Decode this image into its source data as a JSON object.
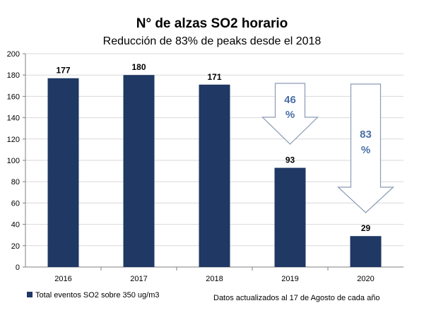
{
  "chart_data": {
    "type": "bar",
    "title": "N° de alzas SO2 horario",
    "subtitle": "Reducción de 83% de peaks desde el 2018",
    "categories": [
      "2016",
      "2017",
      "2018",
      "2019",
      "2020"
    ],
    "series": [
      {
        "name": "Total eventos SO2 sobre 350 ug/m3",
        "values": [
          177,
          180,
          171,
          93,
          29
        ]
      }
    ],
    "ylim": [
      0,
      200
    ],
    "yticks": [
      "0",
      "20",
      "40",
      "60",
      "80",
      "100",
      "120",
      "140",
      "160",
      "180",
      "200"
    ],
    "grid": true,
    "legend_position": "bottom-left",
    "bar_color": "#1f3864",
    "annotations": [
      {
        "category": "2019",
        "line1": "46",
        "line2": "%"
      },
      {
        "category": "2020",
        "line1": "83",
        "line2": "%"
      }
    ],
    "annotation_color": "#4a6fa5",
    "footnote": "Datos actualizados al 17 de Agosto de cada año"
  }
}
